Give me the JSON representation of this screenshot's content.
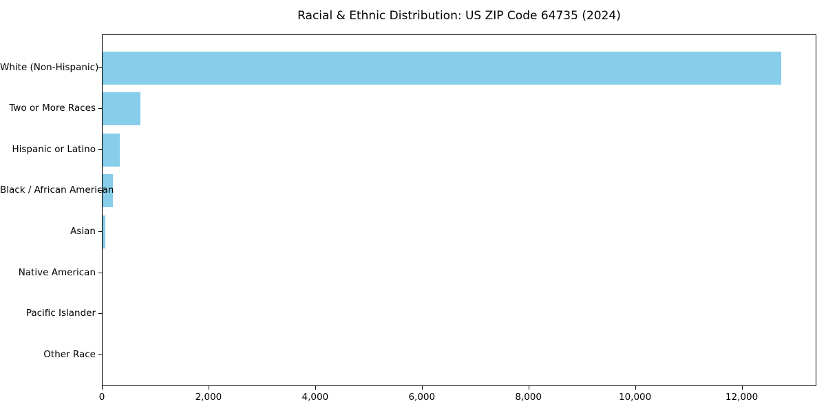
{
  "chart_data": {
    "type": "bar",
    "orientation": "horizontal",
    "title": "Racial & Ethnic Distribution: US ZIP Code 64735 (2024)",
    "categories": [
      "White (Non-Hispanic)",
      "Two or More Races",
      "Hispanic or Latino",
      "Black / African American",
      "Asian",
      "Native American",
      "Pacific Islander",
      "Other Race"
    ],
    "values": [
      12730,
      710,
      320,
      200,
      50,
      0,
      0,
      0
    ],
    "bar_color": "#87CEEB",
    "xlabel": "",
    "ylabel": "",
    "xlim": [
      0,
      13400
    ],
    "xticks": {
      "values": [
        0,
        2000,
        4000,
        6000,
        8000,
        10000,
        12000
      ],
      "labels": [
        "0",
        "2,000",
        "4,000",
        "6,000",
        "8,000",
        "10,000",
        "12,000"
      ]
    },
    "grid": false,
    "legend": null,
    "frame": true,
    "background_color": "#ffffff",
    "text_color": "#000000"
  }
}
